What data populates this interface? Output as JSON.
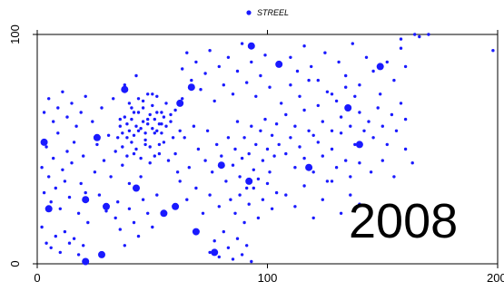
{
  "chart_data": {
    "type": "scatter",
    "year_label": "2008",
    "legend": {
      "label": "STREEL",
      "position": "top-center"
    },
    "series": [
      {
        "name": "STREEL",
        "color": "#1a1aff",
        "small_points": [
          [
            2,
            42
          ],
          [
            3,
            31
          ],
          [
            4,
            51
          ],
          [
            5,
            38
          ],
          [
            6,
            27
          ],
          [
            7,
            46
          ],
          [
            8,
            33
          ],
          [
            9,
            57
          ],
          [
            10,
            24
          ],
          [
            11,
            41
          ],
          [
            12,
            36
          ],
          [
            13,
            49
          ],
          [
            14,
            29
          ],
          [
            15,
            44
          ],
          [
            16,
            53
          ],
          [
            18,
            22
          ],
          [
            19,
            35
          ],
          [
            20,
            47
          ],
          [
            21,
            31
          ],
          [
            22,
            18
          ],
          [
            2,
            16
          ],
          [
            4,
            9
          ],
          [
            6,
            7
          ],
          [
            8,
            12
          ],
          [
            10,
            5
          ],
          [
            12,
            14
          ],
          [
            14,
            9
          ],
          [
            16,
            11
          ],
          [
            18,
            4
          ],
          [
            20,
            8
          ],
          [
            3,
            66
          ],
          [
            5,
            72
          ],
          [
            7,
            62
          ],
          [
            9,
            68
          ],
          [
            11,
            75
          ],
          [
            13,
            64
          ],
          [
            15,
            70
          ],
          [
            17,
            60
          ],
          [
            19,
            66
          ],
          [
            21,
            73
          ],
          [
            24,
            62
          ],
          [
            25,
            40
          ],
          [
            26,
            52
          ],
          [
            27,
            30
          ],
          [
            28,
            68
          ],
          [
            29,
            45
          ],
          [
            30,
            23
          ],
          [
            31,
            56
          ],
          [
            32,
            38
          ],
          [
            33,
            72
          ],
          [
            34,
            49
          ],
          [
            35,
            27
          ],
          [
            36,
            63
          ],
          [
            37,
            43
          ],
          [
            38,
            78
          ],
          [
            39,
            55
          ],
          [
            40,
            35
          ],
          [
            41,
            68
          ],
          [
            42,
            48
          ],
          [
            43,
            82
          ],
          [
            44,
            58
          ],
          [
            45,
            38
          ],
          [
            46,
            71
          ],
          [
            47,
            52
          ],
          [
            48,
            63
          ],
          [
            49,
            44
          ],
          [
            50,
            74
          ],
          [
            51,
            57
          ],
          [
            52,
            66
          ],
          [
            53,
            48
          ],
          [
            54,
            61
          ],
          [
            55,
            53
          ],
          [
            56,
            70
          ],
          [
            57,
            45
          ],
          [
            58,
            62
          ],
          [
            59,
            55
          ],
          [
            60,
            67
          ],
          [
            61,
            40
          ],
          [
            62,
            58
          ],
          [
            63,
            72
          ],
          [
            36,
            60
          ],
          [
            37,
            57
          ],
          [
            38,
            64
          ],
          [
            39,
            61
          ],
          [
            40,
            58
          ],
          [
            41,
            63
          ],
          [
            42,
            56
          ],
          [
            43,
            60
          ],
          [
            44,
            66
          ],
          [
            45,
            59
          ],
          [
            46,
            62
          ],
          [
            47,
            57
          ],
          [
            48,
            61
          ],
          [
            49,
            65
          ],
          [
            50,
            59
          ],
          [
            51,
            63
          ],
          [
            52,
            58
          ],
          [
            53,
            61
          ],
          [
            54,
            57
          ],
          [
            55,
            64
          ],
          [
            40,
            70
          ],
          [
            42,
            66
          ],
          [
            44,
            72
          ],
          [
            46,
            68
          ],
          [
            48,
            74
          ],
          [
            50,
            69
          ],
          [
            52,
            73
          ],
          [
            54,
            66
          ],
          [
            56,
            60
          ],
          [
            58,
            65
          ],
          [
            34,
            20
          ],
          [
            36,
            15
          ],
          [
            38,
            8
          ],
          [
            40,
            24
          ],
          [
            42,
            18
          ],
          [
            44,
            12
          ],
          [
            46,
            28
          ],
          [
            48,
            22
          ],
          [
            50,
            16
          ],
          [
            52,
            30
          ],
          [
            35,
            55
          ],
          [
            37,
            51
          ],
          [
            39,
            47
          ],
          [
            41,
            53
          ],
          [
            43,
            50
          ],
          [
            45,
            46
          ],
          [
            47,
            54
          ],
          [
            49,
            51
          ],
          [
            51,
            47
          ],
          [
            53,
            52
          ],
          [
            60,
            48
          ],
          [
            62,
            36
          ],
          [
            64,
            55
          ],
          [
            65,
            28
          ],
          [
            66,
            42
          ],
          [
            68,
            60
          ],
          [
            69,
            33
          ],
          [
            70,
            50
          ],
          [
            72,
            22
          ],
          [
            73,
            45
          ],
          [
            74,
            58
          ],
          [
            75,
            30
          ],
          [
            76,
            40
          ],
          [
            78,
            52
          ],
          [
            79,
            25
          ],
          [
            80,
            47
          ],
          [
            82,
            36
          ],
          [
            83,
            55
          ],
          [
            84,
            28
          ],
          [
            85,
            43
          ],
          [
            86,
            50
          ],
          [
            87,
            62
          ],
          [
            88,
            38
          ],
          [
            89,
            46
          ],
          [
            90,
            55
          ],
          [
            91,
            33
          ],
          [
            92,
            48
          ],
          [
            93,
            60
          ],
          [
            94,
            41
          ],
          [
            95,
            52
          ],
          [
            96,
            37
          ],
          [
            97,
            58
          ],
          [
            98,
            45
          ],
          [
            99,
            63
          ],
          [
            100,
            50
          ],
          [
            101,
            40
          ],
          [
            102,
            56
          ],
          [
            103,
            47
          ],
          [
            104,
            61
          ],
          [
            105,
            52
          ],
          [
            75,
            5
          ],
          [
            77,
            10
          ],
          [
            79,
            3
          ],
          [
            81,
            14
          ],
          [
            83,
            7
          ],
          [
            85,
            2
          ],
          [
            87,
            11
          ],
          [
            89,
            4
          ],
          [
            91,
            8
          ],
          [
            93,
            1
          ],
          [
            86,
            22
          ],
          [
            88,
            30
          ],
          [
            90,
            18
          ],
          [
            92,
            26
          ],
          [
            94,
            33
          ],
          [
            96,
            20
          ],
          [
            98,
            28
          ],
          [
            100,
            35
          ],
          [
            102,
            24
          ],
          [
            104,
            31
          ],
          [
            63,
            85
          ],
          [
            65,
            92
          ],
          [
            67,
            80
          ],
          [
            69,
            88
          ],
          [
            71,
            76
          ],
          [
            73,
            83
          ],
          [
            75,
            93
          ],
          [
            77,
            71
          ],
          [
            79,
            86
          ],
          [
            81,
            78
          ],
          [
            83,
            90
          ],
          [
            85,
            74
          ],
          [
            87,
            84
          ],
          [
            89,
            96
          ],
          [
            91,
            79
          ],
          [
            93,
            88
          ],
          [
            95,
            73
          ],
          [
            97,
            82
          ],
          [
            99,
            91
          ],
          [
            101,
            77
          ],
          [
            106,
            70
          ],
          [
            108,
            65
          ],
          [
            110,
            78
          ],
          [
            112,
            60
          ],
          [
            114,
            73
          ],
          [
            116,
            67
          ],
          [
            118,
            80
          ],
          [
            120,
            56
          ],
          [
            122,
            69
          ],
          [
            124,
            62
          ],
          [
            126,
            75
          ],
          [
            128,
            58
          ],
          [
            130,
            71
          ],
          [
            132,
            64
          ],
          [
            134,
            77
          ],
          [
            136,
            60
          ],
          [
            138,
            73
          ],
          [
            140,
            66
          ],
          [
            108,
            48
          ],
          [
            110,
            55
          ],
          [
            112,
            42
          ],
          [
            114,
            51
          ],
          [
            116,
            46
          ],
          [
            118,
            58
          ],
          [
            120,
            40
          ],
          [
            122,
            53
          ],
          [
            124,
            47
          ],
          [
            126,
            36
          ],
          [
            128,
            50
          ],
          [
            130,
            42
          ],
          [
            132,
            57
          ],
          [
            134,
            45
          ],
          [
            136,
            38
          ],
          [
            138,
            52
          ],
          [
            140,
            44
          ],
          [
            142,
            58
          ],
          [
            110,
            90
          ],
          [
            113,
            84
          ],
          [
            116,
            95
          ],
          [
            119,
            86
          ],
          [
            122,
            80
          ],
          [
            125,
            92
          ],
          [
            128,
            74
          ],
          [
            131,
            88
          ],
          [
            134,
            82
          ],
          [
            137,
            96
          ],
          [
            140,
            78
          ],
          [
            143,
            90
          ],
          [
            146,
            84
          ],
          [
            149,
            74
          ],
          [
            152,
            88
          ],
          [
            155,
            80
          ],
          [
            158,
            94
          ],
          [
            160,
            86
          ],
          [
            144,
            62
          ],
          [
            146,
            55
          ],
          [
            148,
            68
          ],
          [
            150,
            60
          ],
          [
            152,
            52
          ],
          [
            154,
            65
          ],
          [
            156,
            58
          ],
          [
            158,
            70
          ],
          [
            160,
            63
          ],
          [
            108,
            30
          ],
          [
            112,
            25
          ],
          [
            116,
            34
          ],
          [
            120,
            20
          ],
          [
            124,
            28
          ],
          [
            128,
            36
          ],
          [
            132,
            22
          ],
          [
            136,
            30
          ],
          [
            140,
            26
          ],
          [
            145,
            40
          ],
          [
            150,
            45
          ],
          [
            155,
            38
          ],
          [
            160,
            50
          ],
          [
            163,
            44
          ],
          [
            166,
            99
          ],
          [
            170,
            100
          ],
          [
            158,
            98
          ],
          [
            164,
            100
          ],
          [
            198,
            93
          ]
        ],
        "large_points": [
          [
            3,
            53
          ],
          [
            5,
            24
          ],
          [
            21,
            1
          ],
          [
            28,
            4
          ],
          [
            30,
            25
          ],
          [
            38,
            76
          ],
          [
            43,
            33
          ],
          [
            55,
            22
          ],
          [
            60,
            25
          ],
          [
            62,
            70
          ],
          [
            67,
            77
          ],
          [
            69,
            14
          ],
          [
            77,
            5
          ],
          [
            80,
            43
          ],
          [
            92,
            36
          ],
          [
            93,
            95
          ],
          [
            105,
            87
          ],
          [
            118,
            42
          ],
          [
            135,
            68
          ],
          [
            140,
            52
          ],
          [
            149,
            86
          ],
          [
            21,
            28
          ],
          [
            26,
            55
          ]
        ]
      }
    ],
    "x": {
      "min": 0,
      "max": 200,
      "ticks": [
        0,
        100,
        200
      ],
      "tick_labels": [
        "0",
        "100",
        "200"
      ]
    },
    "y": {
      "min": 0,
      "max": 100,
      "ticks": [
        0,
        100
      ],
      "tick_labels": [
        "0",
        "100"
      ]
    },
    "xlabel": "",
    "ylabel": "",
    "grid": false
  }
}
